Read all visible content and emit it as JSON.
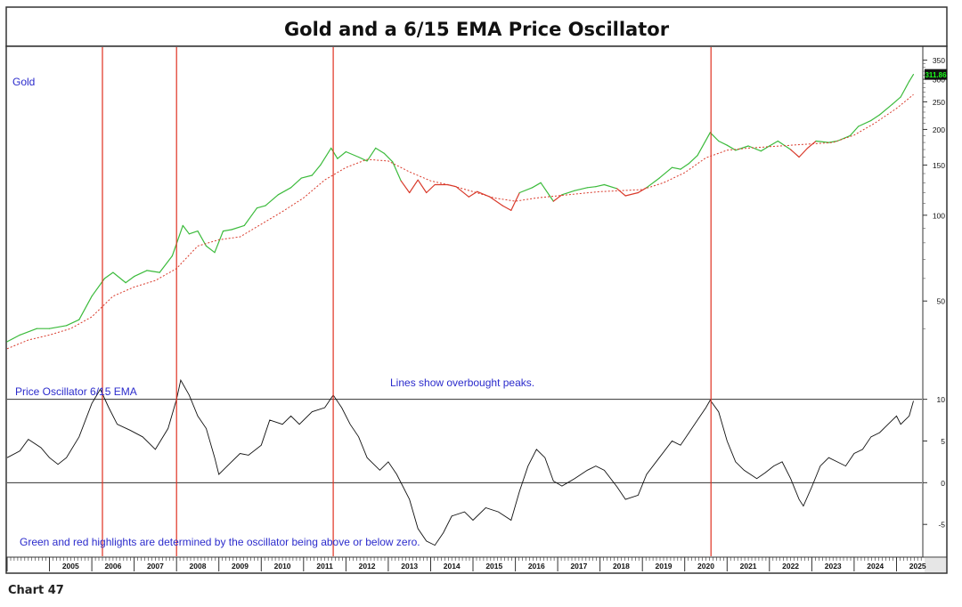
{
  "chart_data": {
    "type": "line",
    "title": "Gold and a 6/15 EMA Price Oscillator",
    "caption": "Chart 47",
    "price_panel": {
      "label": "Gold",
      "scale": "log",
      "ylim": [
        33,
        375
      ],
      "yticks": [
        50,
        100,
        150,
        200,
        250,
        300,
        350
      ],
      "last_value_label": "311.86",
      "colors": {
        "above": "#3cbb3c",
        "below": "#d93a2b",
        "ema": "#d93a2b",
        "label": "#2b2bcc",
        "last_value_bg": "#111111",
        "last_value_fg": "#1cff1c"
      },
      "series": [
        {
          "name": "Gold",
          "points": [
            [
              2004.0,
              36
            ],
            [
              2004.3,
              38
            ],
            [
              2004.7,
              40
            ],
            [
              2005.0,
              40
            ],
            [
              2005.4,
              41
            ],
            [
              2005.7,
              43
            ],
            [
              2006.0,
              52
            ],
            [
              2006.3,
              60
            ],
            [
              2006.5,
              63
            ],
            [
              2006.8,
              58
            ],
            [
              2007.0,
              61
            ],
            [
              2007.3,
              64
            ],
            [
              2007.6,
              63
            ],
            [
              2007.9,
              72
            ],
            [
              2008.15,
              92
            ],
            [
              2008.3,
              86
            ],
            [
              2008.5,
              88
            ],
            [
              2008.7,
              78
            ],
            [
              2008.9,
              74
            ],
            [
              2009.1,
              88
            ],
            [
              2009.3,
              89
            ],
            [
              2009.6,
              92
            ],
            [
              2009.9,
              106
            ],
            [
              2010.1,
              108
            ],
            [
              2010.4,
              118
            ],
            [
              2010.7,
              125
            ],
            [
              2010.95,
              135
            ],
            [
              2011.2,
              138
            ],
            [
              2011.4,
              150
            ],
            [
              2011.65,
              172
            ],
            [
              2011.8,
              158
            ],
            [
              2012.0,
              167
            ],
            [
              2012.3,
              160
            ],
            [
              2012.5,
              155
            ],
            [
              2012.7,
              172
            ],
            [
              2012.9,
              165
            ],
            [
              2013.1,
              154
            ],
            [
              2013.3,
              132
            ],
            [
              2013.5,
              120
            ],
            [
              2013.7,
              133
            ],
            [
              2013.9,
              120
            ],
            [
              2014.1,
              128
            ],
            [
              2014.4,
              128
            ],
            [
              2014.6,
              126
            ],
            [
              2014.9,
              116
            ],
            [
              2015.1,
              121
            ],
            [
              2015.4,
              116
            ],
            [
              2015.7,
              108
            ],
            [
              2015.9,
              104
            ],
            [
              2016.1,
              120
            ],
            [
              2016.4,
              125
            ],
            [
              2016.6,
              130
            ],
            [
              2016.9,
              112
            ],
            [
              2017.1,
              118
            ],
            [
              2017.4,
              122
            ],
            [
              2017.7,
              125
            ],
            [
              2017.9,
              126
            ],
            [
              2018.1,
              128
            ],
            [
              2018.4,
              124
            ],
            [
              2018.6,
              117
            ],
            [
              2018.9,
              120
            ],
            [
              2019.1,
              125
            ],
            [
              2019.4,
              135
            ],
            [
              2019.7,
              147
            ],
            [
              2019.9,
              145
            ],
            [
              2020.1,
              152
            ],
            [
              2020.3,
              162
            ],
            [
              2020.6,
              195
            ],
            [
              2020.8,
              182
            ],
            [
              2021.0,
              176
            ],
            [
              2021.2,
              169
            ],
            [
              2021.5,
              175
            ],
            [
              2021.8,
              168
            ],
            [
              2022.0,
              175
            ],
            [
              2022.2,
              182
            ],
            [
              2022.5,
              170
            ],
            [
              2022.7,
              160
            ],
            [
              2022.9,
              172
            ],
            [
              2023.1,
              182
            ],
            [
              2023.4,
              180
            ],
            [
              2023.6,
              182
            ],
            [
              2023.9,
              190
            ],
            [
              2024.1,
              205
            ],
            [
              2024.4,
              215
            ],
            [
              2024.6,
              225
            ],
            [
              2024.9,
              245
            ],
            [
              2025.1,
              260
            ],
            [
              2025.3,
              295
            ],
            [
              2025.4,
              312
            ]
          ]
        },
        {
          "name": "15-period EMA",
          "points": [
            [
              2004.0,
              34
            ],
            [
              2004.5,
              36.5
            ],
            [
              2005.0,
              38
            ],
            [
              2005.5,
              40
            ],
            [
              2006.0,
              44
            ],
            [
              2006.5,
              52
            ],
            [
              2007.0,
              56
            ],
            [
              2007.5,
              59
            ],
            [
              2008.0,
              65
            ],
            [
              2008.5,
              78
            ],
            [
              2009.0,
              82
            ],
            [
              2009.5,
              84
            ],
            [
              2010.0,
              93
            ],
            [
              2010.5,
              103
            ],
            [
              2011.0,
              115
            ],
            [
              2011.5,
              133
            ],
            [
              2012.0,
              147
            ],
            [
              2012.5,
              157
            ],
            [
              2013.0,
              155
            ],
            [
              2013.5,
              142
            ],
            [
              2014.0,
              132
            ],
            [
              2014.5,
              127
            ],
            [
              2015.0,
              121
            ],
            [
              2015.5,
              115
            ],
            [
              2016.0,
              112
            ],
            [
              2016.5,
              115
            ],
            [
              2017.0,
              117
            ],
            [
              2017.5,
              119
            ],
            [
              2018.0,
              121
            ],
            [
              2018.5,
              122
            ],
            [
              2019.0,
              123
            ],
            [
              2019.5,
              130
            ],
            [
              2020.0,
              141
            ],
            [
              2020.5,
              159
            ],
            [
              2021.0,
              169
            ],
            [
              2021.5,
              172
            ],
            [
              2022.0,
              174
            ],
            [
              2022.5,
              176
            ],
            [
              2023.0,
              178
            ],
            [
              2023.5,
              180
            ],
            [
              2024.0,
              191
            ],
            [
              2024.5,
              211
            ],
            [
              2025.0,
              237
            ],
            [
              2025.4,
              265
            ]
          ]
        }
      ]
    },
    "oscillator_panel": {
      "label": "Price Oscillator 6/15 EMA",
      "ylim": [
        -8.5,
        12.2
      ],
      "yticks": [
        10,
        5,
        0,
        -5
      ],
      "overbought_line": 10,
      "zero_line": 0,
      "annotation_top": "Lines show overbought peaks.",
      "annotation_bottom": "Green and red highlights are determined by the oscillator being above or below zero.",
      "series": [
        {
          "name": "Price Oscillator",
          "points": [
            [
              2004.0,
              3.0
            ],
            [
              2004.3,
              3.8
            ],
            [
              2004.5,
              5.2
            ],
            [
              2004.8,
              4.2
            ],
            [
              2005.0,
              3.0
            ],
            [
              2005.2,
              2.2
            ],
            [
              2005.4,
              3.0
            ],
            [
              2005.7,
              5.5
            ],
            [
              2006.0,
              9.5
            ],
            [
              2006.2,
              11.2
            ],
            [
              2006.4,
              9.0
            ],
            [
              2006.6,
              7.0
            ],
            [
              2006.9,
              6.3
            ],
            [
              2007.2,
              5.5
            ],
            [
              2007.5,
              4.0
            ],
            [
              2007.8,
              6.5
            ],
            [
              2008.0,
              10.0
            ],
            [
              2008.1,
              12.3
            ],
            [
              2008.3,
              10.5
            ],
            [
              2008.5,
              8.0
            ],
            [
              2008.7,
              6.5
            ],
            [
              2008.9,
              3.0
            ],
            [
              2009.0,
              1.0
            ],
            [
              2009.2,
              2.0
            ],
            [
              2009.5,
              3.5
            ],
            [
              2009.7,
              3.3
            ],
            [
              2010.0,
              4.5
            ],
            [
              2010.2,
              7.5
            ],
            [
              2010.5,
              7.0
            ],
            [
              2010.7,
              8.0
            ],
            [
              2010.9,
              7.0
            ],
            [
              2011.2,
              8.5
            ],
            [
              2011.5,
              9.0
            ],
            [
              2011.7,
              10.5
            ],
            [
              2011.9,
              9.0
            ],
            [
              2012.1,
              7.0
            ],
            [
              2012.3,
              5.5
            ],
            [
              2012.5,
              3.0
            ],
            [
              2012.8,
              1.5
            ],
            [
              2013.0,
              2.5
            ],
            [
              2013.2,
              1.0
            ],
            [
              2013.5,
              -2.0
            ],
            [
              2013.7,
              -5.5
            ],
            [
              2013.9,
              -7.0
            ],
            [
              2014.1,
              -7.5
            ],
            [
              2014.3,
              -6.0
            ],
            [
              2014.5,
              -4.0
            ],
            [
              2014.8,
              -3.5
            ],
            [
              2015.0,
              -4.5
            ],
            [
              2015.3,
              -3.0
            ],
            [
              2015.6,
              -3.5
            ],
            [
              2015.9,
              -4.5
            ],
            [
              2016.1,
              -1.0
            ],
            [
              2016.3,
              2.0
            ],
            [
              2016.5,
              4.0
            ],
            [
              2016.7,
              3.0
            ],
            [
              2016.9,
              0.2
            ],
            [
              2017.1,
              -0.4
            ],
            [
              2017.4,
              0.5
            ],
            [
              2017.7,
              1.5
            ],
            [
              2017.9,
              2.0
            ],
            [
              2018.1,
              1.5
            ],
            [
              2018.4,
              -0.5
            ],
            [
              2018.6,
              -2.0
            ],
            [
              2018.9,
              -1.5
            ],
            [
              2019.1,
              1.0
            ],
            [
              2019.4,
              3.0
            ],
            [
              2019.7,
              5.0
            ],
            [
              2019.9,
              4.5
            ],
            [
              2020.1,
              6.0
            ],
            [
              2020.3,
              7.5
            ],
            [
              2020.5,
              9.0
            ],
            [
              2020.6,
              9.9
            ],
            [
              2020.8,
              8.5
            ],
            [
              2021.0,
              5.0
            ],
            [
              2021.2,
              2.5
            ],
            [
              2021.4,
              1.5
            ],
            [
              2021.7,
              0.5
            ],
            [
              2021.9,
              1.2
            ],
            [
              2022.1,
              2.0
            ],
            [
              2022.3,
              2.5
            ],
            [
              2022.5,
              0.5
            ],
            [
              2022.7,
              -2.0
            ],
            [
              2022.8,
              -2.8
            ],
            [
              2023.0,
              -0.5
            ],
            [
              2023.2,
              2.0
            ],
            [
              2023.4,
              3.0
            ],
            [
              2023.6,
              2.5
            ],
            [
              2023.8,
              2.0
            ],
            [
              2024.0,
              3.5
            ],
            [
              2024.2,
              4.0
            ],
            [
              2024.4,
              5.5
            ],
            [
              2024.6,
              6.0
            ],
            [
              2024.8,
              7.0
            ],
            [
              2025.0,
              8.0
            ],
            [
              2025.1,
              7.0
            ],
            [
              2025.3,
              8.0
            ],
            [
              2025.4,
              9.8
            ]
          ]
        }
      ]
    },
    "x_axis": {
      "range": [
        2004.0,
        2025.6
      ],
      "tick_labels": [
        "2005",
        "2006",
        "2007",
        "2008",
        "2009",
        "2010",
        "2011",
        "2012",
        "2013",
        "2014",
        "2015",
        "2016",
        "2017",
        "2018",
        "2019",
        "2020",
        "2021",
        "2022",
        "2023",
        "2024",
        "2025"
      ]
    },
    "overbought_peak_dates": [
      2006.25,
      2008.0,
      2011.7,
      2020.62
    ],
    "colors": {
      "oscillator": "#111111",
      "peak_lines": "#e03020",
      "ref_lines": "#333333",
      "label": "#2b2bcc"
    }
  }
}
